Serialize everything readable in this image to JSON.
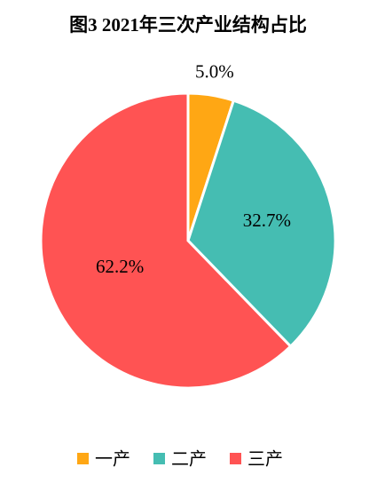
{
  "chart_data": {
    "type": "pie",
    "title": "图3  2021年三次产业结构占比",
    "categories": [
      "一产",
      "二产",
      "三产"
    ],
    "values": [
      5.0,
      32.7,
      62.2
    ],
    "value_labels": [
      "5.0%",
      "32.7%",
      "62.2%"
    ],
    "colors": [
      "#FFA714",
      "#45BDB2",
      "#FF5353"
    ],
    "legend": "bottom"
  }
}
